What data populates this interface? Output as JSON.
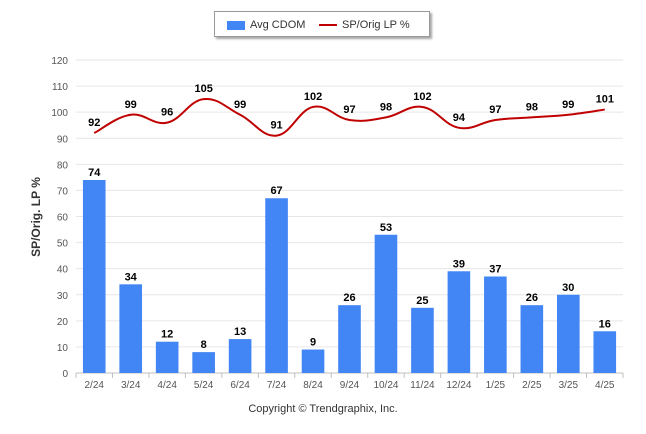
{
  "chart_data": {
    "type": "bar",
    "categories": [
      "2/24",
      "3/24",
      "4/24",
      "5/24",
      "6/24",
      "7/24",
      "8/24",
      "9/24",
      "10/24",
      "11/24",
      "12/24",
      "1/25",
      "2/25",
      "3/25",
      "4/25"
    ],
    "series": [
      {
        "name": "Avg CDOM",
        "kind": "bar",
        "color": "#4285f4",
        "values": [
          74,
          34,
          12,
          8,
          13,
          67,
          9,
          26,
          53,
          25,
          39,
          37,
          26,
          30,
          16
        ]
      },
      {
        "name": "SP/Orig LP %",
        "kind": "line",
        "color": "#c00000",
        "values": [
          92,
          99,
          96,
          105,
          99,
          91,
          102,
          97,
          98,
          102,
          94,
          97,
          98,
          99,
          101
        ]
      }
    ],
    "ylabel": "SP/Orig. LP %",
    "xlabel": "",
    "ylim": [
      0,
      120
    ],
    "yticks": [
      0,
      10,
      20,
      30,
      40,
      50,
      60,
      70,
      80,
      90,
      100,
      110,
      120
    ],
    "grid": true,
    "legend_position": "top-center"
  },
  "footer": "Copyright © Trendgraphix, Inc."
}
